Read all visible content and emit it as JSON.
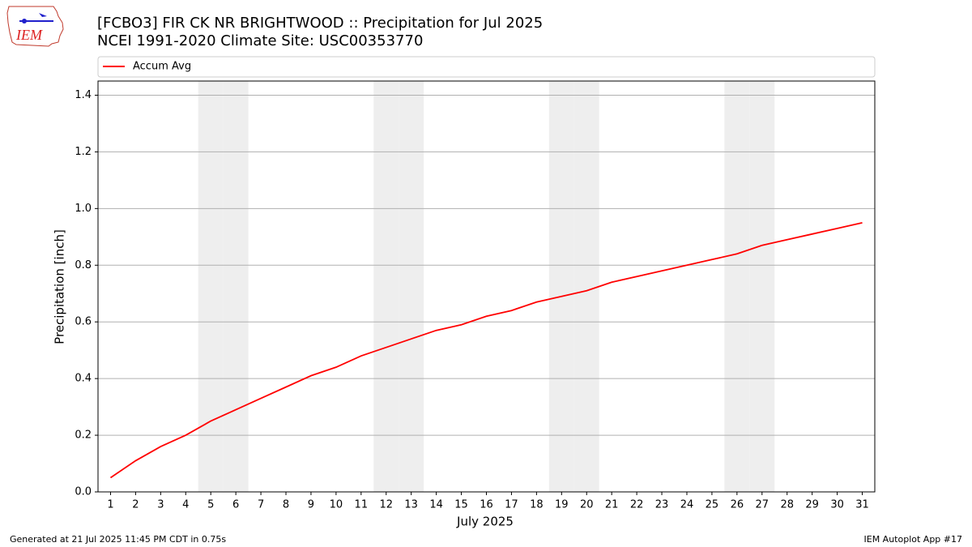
{
  "chart_data": {
    "type": "line",
    "title": "[FCBO3] FIR CK NR BRIGHTWOOD :: Precipitation for Jul 2025",
    "subtitle": "NCEI 1991-2020 Climate Site: USC00353770",
    "x_label": "July 2025",
    "y_label": "Precipitation [inch]",
    "x": [
      1,
      2,
      3,
      4,
      5,
      6,
      7,
      8,
      9,
      10,
      11,
      12,
      13,
      14,
      15,
      16,
      17,
      18,
      19,
      20,
      21,
      22,
      23,
      24,
      25,
      26,
      27,
      28,
      29,
      30,
      31
    ],
    "series": [
      {
        "name": "Accum Avg",
        "color": "#ff0000",
        "values": [
          0.05,
          0.11,
          0.16,
          0.2,
          0.25,
          0.29,
          0.33,
          0.37,
          0.41,
          0.44,
          0.48,
          0.51,
          0.54,
          0.57,
          0.59,
          0.62,
          0.64,
          0.67,
          0.69,
          0.71,
          0.74,
          0.76,
          0.78,
          0.8,
          0.82,
          0.84,
          0.87,
          0.89,
          0.91,
          0.93,
          0.95
        ]
      }
    ],
    "shaded_days": [
      5,
      6,
      12,
      13,
      19,
      20,
      26,
      27
    ],
    "xlim": [
      0.5,
      31.5
    ],
    "xticks": [
      1,
      2,
      3,
      4,
      5,
      6,
      7,
      8,
      9,
      10,
      11,
      12,
      13,
      14,
      15,
      16,
      17,
      18,
      19,
      20,
      21,
      22,
      23,
      24,
      25,
      26,
      27,
      28,
      29,
      30,
      31
    ],
    "ylim": [
      0,
      1.45
    ],
    "yticks": [
      {
        "value": 0,
        "label": "0.0"
      },
      0.2,
      0.4,
      0.6,
      0.8,
      {
        "value": 1,
        "label": "1.0"
      },
      1.2,
      1.4
    ],
    "grid": true,
    "legend": "top"
  },
  "logo": "IEM",
  "footer": {
    "left": "Generated at 21 Jul 2025 11:45 PM CDT in 0.75s",
    "right": "IEM Autoplot App #17"
  }
}
